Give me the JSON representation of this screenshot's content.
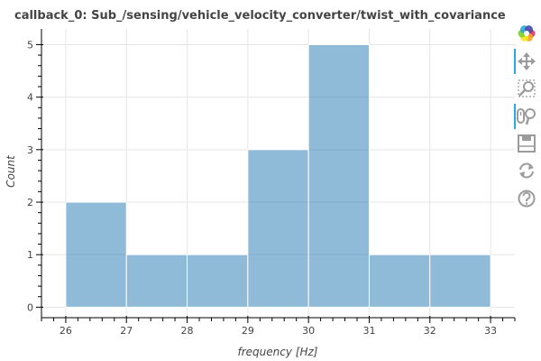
{
  "chart_data": {
    "type": "bar",
    "title": "callback_0: Sub_/sensing/vehicle_velocity_converter/twist_with_covariance",
    "xlabel": "frequency [Hz]",
    "ylabel": "Count",
    "bins": [
      {
        "start": 26,
        "end": 27,
        "count": 2
      },
      {
        "start": 27,
        "end": 28,
        "count": 1
      },
      {
        "start": 28,
        "end": 29,
        "count": 1
      },
      {
        "start": 29,
        "end": 30,
        "count": 3
      },
      {
        "start": 30,
        "end": 31,
        "count": 5
      },
      {
        "start": 31,
        "end": 32,
        "count": 1
      },
      {
        "start": 32,
        "end": 33,
        "count": 1
      }
    ],
    "x_ticks": [
      "26",
      "27",
      "28",
      "29",
      "30",
      "31",
      "32",
      "33"
    ],
    "y_ticks": [
      "0",
      "1",
      "2",
      "3",
      "4",
      "5"
    ],
    "xlim": [
      25.6,
      33.4
    ],
    "ylim": [
      -0.2,
      5.3
    ],
    "grid": true,
    "bar_color": "#1f77b4"
  },
  "toolbar": {
    "tools": [
      {
        "name": "bokeh-logo-icon",
        "interactable": false
      },
      {
        "name": "pan-tool-icon",
        "interactable": true,
        "active": true
      },
      {
        "name": "box-zoom-tool-icon",
        "interactable": true,
        "active": false
      },
      {
        "name": "wheel-zoom-tool-icon",
        "interactable": true,
        "active": true
      },
      {
        "name": "save-tool-icon",
        "interactable": true,
        "active": false
      },
      {
        "name": "reset-tool-icon",
        "interactable": true,
        "active": false
      },
      {
        "name": "help-tool-icon",
        "interactable": true,
        "active": false
      }
    ],
    "active_color": "#26aae1"
  }
}
